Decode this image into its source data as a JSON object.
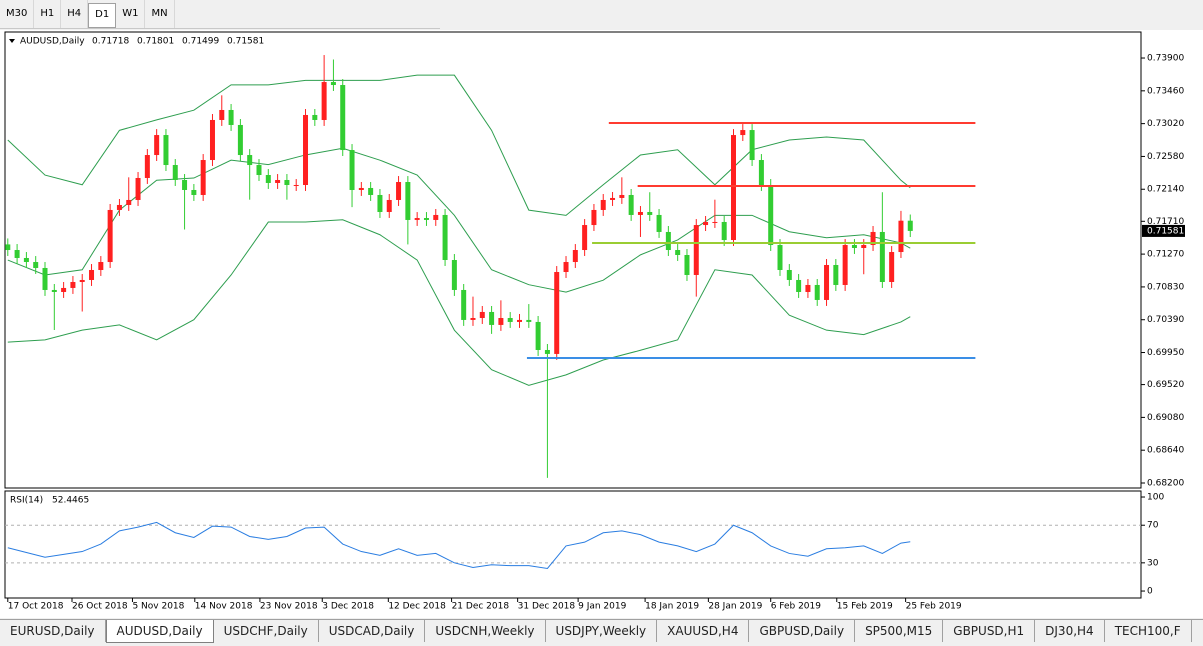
{
  "toolbar": {
    "timeframes": [
      "M30",
      "H1",
      "H4",
      "D1",
      "W1",
      "MN"
    ],
    "active": "D1"
  },
  "chart_data": {
    "type": "candlestick",
    "symbol_label": "AUDUSD,Daily",
    "bull_color": "#ff2020",
    "bear_color": "#32cd32",
    "candles": [
      [
        0.714,
        0.7148,
        0.71245,
        0.71325
      ],
      [
        0.71325,
        0.71405,
        0.71138,
        0.71218
      ],
      [
        0.71218,
        0.71298,
        0.71084,
        0.71164
      ],
      [
        0.71164,
        0.71244,
        0.71004,
        0.71084
      ],
      [
        0.71084,
        0.71164,
        0.70709,
        0.70789
      ],
      [
        0.70789,
        0.70869,
        0.70252,
        0.70762
      ],
      [
        0.70762,
        0.70896,
        0.70682,
        0.70816
      ],
      [
        0.70816,
        0.70976,
        0.70736,
        0.70896
      ],
      [
        0.70896,
        0.71003,
        0.705,
        0.70923
      ],
      [
        0.70923,
        0.71137,
        0.70843,
        0.71057
      ],
      [
        0.71057,
        0.71244,
        0.70977,
        0.71164
      ],
      [
        0.71164,
        0.71942,
        0.71084,
        0.71862
      ],
      [
        0.71862,
        0.72009,
        0.71782,
        0.71929
      ],
      [
        0.71929,
        0.723,
        0.71849,
        0.71996
      ],
      [
        0.71996,
        0.72371,
        0.71916,
        0.72291
      ],
      [
        0.72291,
        0.72679,
        0.72211,
        0.72599
      ],
      [
        0.72599,
        0.72947,
        0.72519,
        0.72867
      ],
      [
        0.72867,
        0.72947,
        0.72385,
        0.72465
      ],
      [
        0.72465,
        0.72545,
        0.72184,
        0.72264
      ],
      [
        0.72264,
        0.72344,
        0.716,
        0.7213
      ],
      [
        0.7213,
        0.7221,
        0.71983,
        0.72063
      ],
      [
        0.72063,
        0.72612,
        0.71983,
        0.72532
      ],
      [
        0.72532,
        0.73149,
        0.72452,
        0.73069
      ],
      [
        0.73069,
        0.734,
        0.72989,
        0.73203
      ],
      [
        0.73203,
        0.73283,
        0.72922,
        0.73002
      ],
      [
        0.73002,
        0.73082,
        0.72519,
        0.72599
      ],
      [
        0.72599,
        0.72679,
        0.72,
        0.72465
      ],
      [
        0.72465,
        0.72545,
        0.72251,
        0.72331
      ],
      [
        0.72331,
        0.72411,
        0.72144,
        0.72224
      ],
      [
        0.72224,
        0.72344,
        0.72144,
        0.72264
      ],
      [
        0.72264,
        0.72344,
        0.72,
        0.72197
      ],
      [
        0.72197,
        0.72277,
        0.72117,
        0.72197
      ],
      [
        0.72197,
        0.73216,
        0.72117,
        0.73136
      ],
      [
        0.73136,
        0.73216,
        0.72989,
        0.73069
      ],
      [
        0.73069,
        0.7394,
        0.72989,
        0.73578
      ],
      [
        0.73578,
        0.7388,
        0.73458,
        0.73538
      ],
      [
        0.73538,
        0.73618,
        0.72586,
        0.72666
      ],
      [
        0.72666,
        0.72746,
        0.719,
        0.7213
      ],
      [
        0.7213,
        0.72237,
        0.7205,
        0.72157
      ],
      [
        0.72157,
        0.72237,
        0.71983,
        0.72063
      ],
      [
        0.72063,
        0.72143,
        0.71755,
        0.71835
      ],
      [
        0.71835,
        0.72076,
        0.71755,
        0.71996
      ],
      [
        0.71996,
        0.72317,
        0.71916,
        0.72237
      ],
      [
        0.72237,
        0.72317,
        0.714,
        0.71728
      ],
      [
        0.71728,
        0.71834,
        0.71648,
        0.71754
      ],
      [
        0.71754,
        0.71834,
        0.71648,
        0.71728
      ],
      [
        0.71728,
        0.71875,
        0.71648,
        0.71795
      ],
      [
        0.71795,
        0.71875,
        0.71111,
        0.71191
      ],
      [
        0.71191,
        0.71271,
        0.70709,
        0.70789
      ],
      [
        0.70789,
        0.70869,
        0.70307,
        0.70387
      ],
      [
        0.70387,
        0.707,
        0.70307,
        0.70413
      ],
      [
        0.70413,
        0.70574,
        0.70333,
        0.70494
      ],
      [
        0.70494,
        0.70574,
        0.702,
        0.7032
      ],
      [
        0.7032,
        0.7065,
        0.7024,
        0.70413
      ],
      [
        0.70413,
        0.70493,
        0.7028,
        0.7036
      ],
      [
        0.7036,
        0.70467,
        0.7028,
        0.70387
      ],
      [
        0.70387,
        0.706,
        0.7028,
        0.7036
      ],
      [
        0.7036,
        0.7044,
        0.69904,
        0.69984
      ],
      [
        0.69984,
        0.70064,
        0.68268,
        0.69931
      ],
      [
        0.69931,
        0.7111,
        0.69851,
        0.7103
      ],
      [
        0.7103,
        0.71244,
        0.7095,
        0.71164
      ],
      [
        0.71164,
        0.71405,
        0.71084,
        0.71325
      ],
      [
        0.71325,
        0.7174,
        0.71245,
        0.7166
      ],
      [
        0.7166,
        0.71942,
        0.7158,
        0.71862
      ],
      [
        0.71862,
        0.72076,
        0.71782,
        0.71996
      ],
      [
        0.71996,
        0.72103,
        0.71916,
        0.72023
      ],
      [
        0.72023,
        0.723,
        0.71943,
        0.72063
      ],
      [
        0.72063,
        0.72143,
        0.71715,
        0.71795
      ],
      [
        0.71795,
        0.71915,
        0.715,
        0.71835
      ],
      [
        0.71835,
        0.721,
        0.71715,
        0.71795
      ],
      [
        0.71795,
        0.71875,
        0.71487,
        0.71567
      ],
      [
        0.71567,
        0.71647,
        0.71245,
        0.71325
      ],
      [
        0.71325,
        0.71405,
        0.71178,
        0.71258
      ],
      [
        0.71258,
        0.71338,
        0.7091,
        0.7099
      ],
      [
        0.7099,
        0.7174,
        0.707,
        0.7166
      ],
      [
        0.7166,
        0.71781,
        0.7158,
        0.71701
      ],
      [
        0.71701,
        0.72,
        0.71621,
        0.71701
      ],
      [
        0.71701,
        0.71781,
        0.71379,
        0.71459
      ],
      [
        0.71459,
        0.72947,
        0.71379,
        0.72867
      ],
      [
        0.72867,
        0.73014,
        0.72787,
        0.72934
      ],
      [
        0.72934,
        0.73014,
        0.72452,
        0.72532
      ],
      [
        0.72532,
        0.72612,
        0.72117,
        0.72197
      ],
      [
        0.72197,
        0.72277,
        0.71312,
        0.71392
      ],
      [
        0.71392,
        0.71472,
        0.70977,
        0.71057
      ],
      [
        0.71057,
        0.71137,
        0.70843,
        0.70923
      ],
      [
        0.70923,
        0.71003,
        0.70682,
        0.70762
      ],
      [
        0.70762,
        0.70936,
        0.70682,
        0.70856
      ],
      [
        0.70856,
        0.70936,
        0.70575,
        0.70655
      ],
      [
        0.70655,
        0.71204,
        0.70575,
        0.71124
      ],
      [
        0.71124,
        0.71204,
        0.70776,
        0.70856
      ],
      [
        0.70856,
        0.71472,
        0.70776,
        0.71392
      ],
      [
        0.71392,
        0.71472,
        0.71272,
        0.71352
      ],
      [
        0.71352,
        0.71472,
        0.71,
        0.71392
      ],
      [
        0.71392,
        0.71647,
        0.71312,
        0.71567
      ],
      [
        0.71567,
        0.721,
        0.70816,
        0.70896
      ],
      [
        0.70896,
        0.71378,
        0.70816,
        0.71298
      ],
      [
        0.71298,
        0.7185,
        0.71218,
        0.71718
      ],
      [
        0.71718,
        0.71801,
        0.71499,
        0.71581
      ]
    ],
    "xlim": [
      -0.3,
      121.8
    ],
    "ylim": [
      0.68133,
      0.74249
    ],
    "yticks": [
      {
        "value": 0.739,
        "label": "0.73900"
      },
      {
        "value": 0.7346,
        "label": "0.73460"
      },
      {
        "value": 0.7302,
        "label": "0.73020"
      },
      {
        "value": 0.7258,
        "label": "0.72580"
      },
      {
        "value": 0.7214,
        "label": "0.72140"
      },
      {
        "value": 0.7171,
        "label": "0.71710"
      },
      {
        "value": 0.7127,
        "label": "0.71270"
      },
      {
        "value": 0.7083,
        "label": "0.70830"
      },
      {
        "value": 0.7039,
        "label": "0.70390"
      },
      {
        "value": 0.6995,
        "label": "0.69950"
      },
      {
        "value": 0.6952,
        "label": "0.69520"
      },
      {
        "value": 0.6908,
        "label": "0.69080"
      },
      {
        "value": 0.6864,
        "label": "0.68640"
      },
      {
        "value": 0.682,
        "label": "0.68200"
      }
    ],
    "xticks": [
      {
        "value": 0,
        "label": "17 Oct 2018"
      },
      {
        "value": 6.9,
        "label": "26 Oct 2018"
      },
      {
        "value": 13.4,
        "label": "5 Nov 2018"
      },
      {
        "value": 20.1,
        "label": "14 Nov 2018"
      },
      {
        "value": 27.1,
        "label": "23 Nov 2018"
      },
      {
        "value": 33.8,
        "label": "3 Dec 2018"
      },
      {
        "value": 40.9,
        "label": "12 Dec 2018"
      },
      {
        "value": 47.7,
        "label": "21 Dec 2018"
      },
      {
        "value": 54.8,
        "label": "31 Dec 2018"
      },
      {
        "value": 61.3,
        "label": "9 Jan 2019"
      },
      {
        "value": 68.5,
        "label": "18 Jan 2019"
      },
      {
        "value": 75.3,
        "label": "28 Jan 2019"
      },
      {
        "value": 82,
        "label": "6 Feb 2019"
      },
      {
        "value": 89.1,
        "label": "15 Feb 2019"
      },
      {
        "value": 96.5,
        "label": "25 Feb 2019"
      }
    ],
    "bands": {
      "color": "#2e9e4f",
      "x": [
        0,
        4,
        8,
        12,
        16,
        20,
        24,
        28,
        32,
        36,
        40,
        44,
        48,
        52,
        56,
        60,
        64,
        68,
        72,
        76,
        80,
        84,
        88,
        92,
        96,
        97
      ],
      "upper": [
        0.728,
        0.7233,
        0.722,
        0.7293,
        0.7307,
        0.732,
        0.7354,
        0.7354,
        0.736,
        0.736,
        0.736,
        0.7367,
        0.7367,
        0.7293,
        0.7186,
        0.7179,
        0.722,
        0.726,
        0.7267,
        0.722,
        0.7267,
        0.728,
        0.7284,
        0.728,
        0.7226,
        0.7216
      ],
      "middle": [
        0.7119,
        0.7099,
        0.7106,
        0.7186,
        0.7226,
        0.7229,
        0.7253,
        0.7247,
        0.726,
        0.7269,
        0.7253,
        0.7233,
        0.7179,
        0.7106,
        0.7086,
        0.7076,
        0.7092,
        0.7126,
        0.7146,
        0.7179,
        0.7179,
        0.7157,
        0.7149,
        0.7153,
        0.7142,
        0.7135
      ],
      "lower": [
        0.7009,
        0.7012,
        0.7025,
        0.7032,
        0.7012,
        0.7039,
        0.7099,
        0.717,
        0.717,
        0.7173,
        0.7153,
        0.7119,
        0.7025,
        0.6972,
        0.6951,
        0.6965,
        0.6985,
        0.6998,
        0.7012,
        0.7106,
        0.7099,
        0.7045,
        0.7025,
        0.7019,
        0.7036,
        0.7043
      ]
    },
    "levels": [
      {
        "value": 0.73028,
        "color": "#ff3b30",
        "from": 64.6,
        "to": 104
      },
      {
        "value": 0.72183,
        "color": "#ff3b30",
        "from": 67.7,
        "to": 104
      },
      {
        "value": 0.71419,
        "color": "#9acd32",
        "from": 62.8,
        "to": 104
      },
      {
        "value": 0.69876,
        "color": "#3a8ee6",
        "from": 55.8,
        "to": 104
      }
    ],
    "indicator": {
      "label": "RSI(14)",
      "color": "#2a7de1",
      "ylim": [
        -7.4,
        106.4
      ],
      "yticks": [
        100,
        70,
        30,
        0
      ],
      "levels": [
        70,
        30
      ],
      "x": [
        0,
        2,
        4,
        6,
        8,
        10,
        12,
        14,
        16,
        18,
        20,
        22,
        24,
        26,
        28,
        30,
        32,
        34,
        36,
        38,
        40,
        42,
        44,
        46,
        48,
        50,
        52,
        54,
        56,
        58,
        60,
        62,
        64,
        66,
        68,
        70,
        72,
        74,
        76,
        78,
        80,
        82,
        84,
        86,
        88,
        90,
        92,
        94,
        96,
        97
      ],
      "values": [
        46,
        41,
        36,
        39,
        42,
        50,
        64,
        68,
        73,
        62,
        57,
        69,
        68,
        58,
        55,
        58,
        67,
        68,
        50,
        42,
        38,
        45,
        38,
        40,
        30,
        25,
        28,
        27,
        27,
        24,
        48,
        52,
        62,
        64,
        60,
        52,
        48,
        42,
        50,
        70,
        62,
        48,
        40,
        37,
        45,
        46,
        48,
        40,
        51,
        52.4465
      ]
    }
  },
  "tabs": {
    "items": [
      "EURUSD,Daily",
      "AUDUSD,Daily",
      "USDCHF,Daily",
      "USDCAD,Daily",
      "USDCNH,Weekly",
      "USDJPY,Weekly",
      "XAUUSD,H4",
      "GBPUSD,Daily",
      "SP500,M15",
      "GBPUSD,H1",
      "DJ30,H4",
      "TECH100,F"
    ],
    "active": 1
  }
}
